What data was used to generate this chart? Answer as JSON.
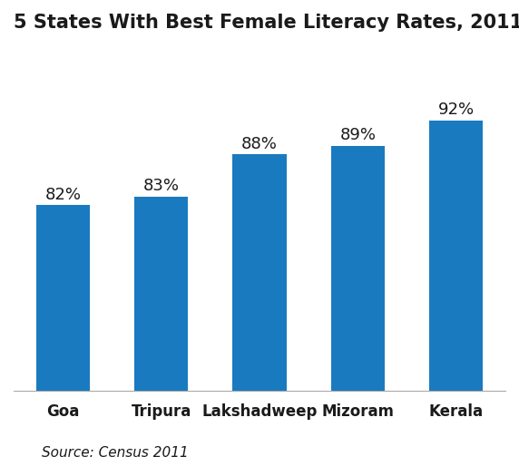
{
  "title": "5 States With Best Female Literacy Rates, 2011",
  "categories": [
    "Goa",
    "Tripura",
    "Lakshadweep",
    "Mizoram",
    "Kerala"
  ],
  "values": [
    82,
    83,
    88,
    89,
    92
  ],
  "bar_color": "#1a7abf",
  "label_color": "#1a1a1a",
  "value_labels": [
    "82%",
    "83%",
    "88%",
    "89%",
    "92%"
  ],
  "source_text": "Source: Census 2011",
  "title_fontsize": 15,
  "label_fontsize": 13,
  "tick_fontsize": 12,
  "source_fontsize": 11,
  "ylim": [
    60,
    100
  ],
  "background_color": "#ffffff",
  "bar_width": 0.55
}
